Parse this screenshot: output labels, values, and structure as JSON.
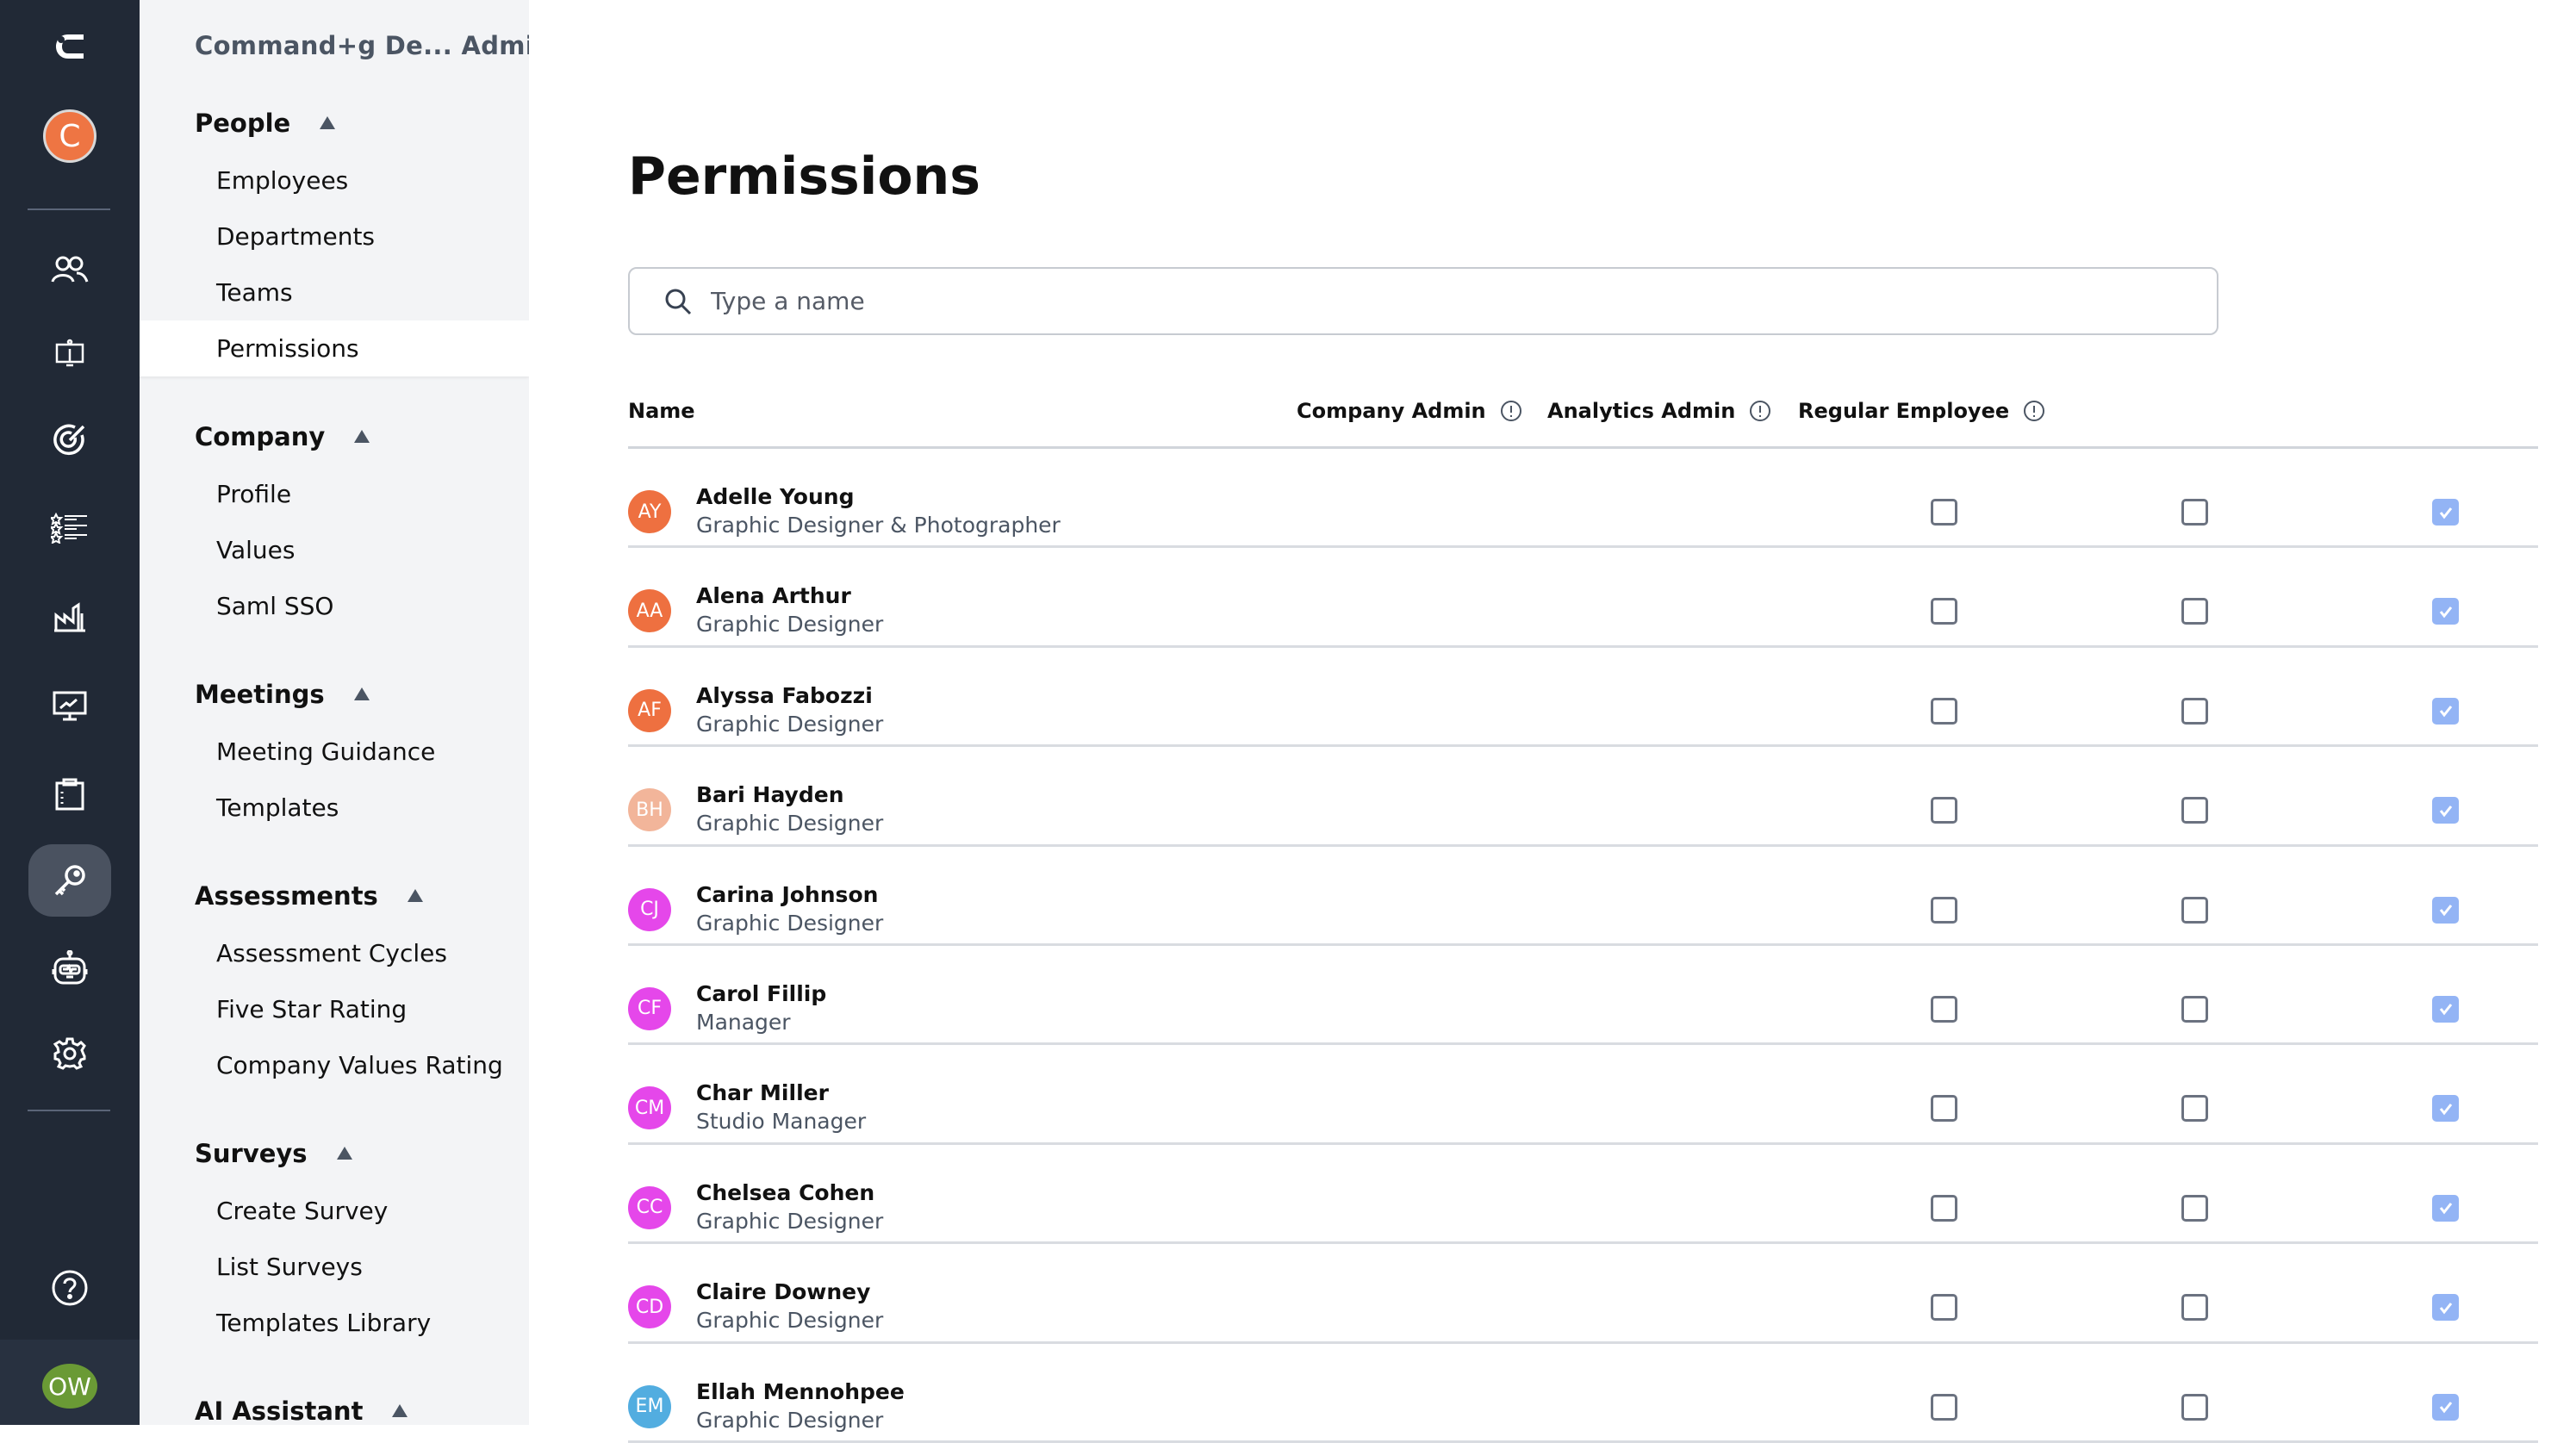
{
  "rail": {
    "icons": [
      "logo-icon",
      "company-avatar-icon",
      "people-icon",
      "presentation-icon",
      "target-icon",
      "star-list-icon",
      "factory-icon",
      "monitor-chart-icon",
      "clipboard-icon",
      "key-icon",
      "robot-icon",
      "gear-icon",
      "help-icon"
    ],
    "company_initial": "C",
    "user_initials": "OW",
    "active": "key-icon",
    "colors": {
      "bg": "#212936",
      "company_avatar": "#ee7543",
      "user_avatar": "#6a9a35"
    }
  },
  "nav": {
    "title": "Command+g De... Admin",
    "sections": [
      {
        "label": "People",
        "items": [
          "Employees",
          "Departments",
          "Teams",
          "Permissions"
        ]
      },
      {
        "label": "Company",
        "items": [
          "Profile",
          "Values",
          "Saml SSO"
        ]
      },
      {
        "label": "Meetings",
        "items": [
          "Meeting Guidance",
          "Templates"
        ]
      },
      {
        "label": "Assessments",
        "items": [
          "Assessment Cycles",
          "Five Star Rating",
          "Company Values Rating"
        ]
      },
      {
        "label": "Surveys",
        "items": [
          "Create Survey",
          "List Surveys",
          "Templates Library"
        ]
      },
      {
        "label": "AI Assistant",
        "items": []
      }
    ],
    "active_item": "Permissions"
  },
  "main": {
    "title": "Permissions",
    "search": {
      "placeholder": "Type a name",
      "value": ""
    },
    "columns": {
      "name": "Name",
      "company_admin": "Company Admin",
      "analytics_admin": "Analytics Admin",
      "regular_employee": "Regular Employee"
    },
    "rows": [
      {
        "initials": "AY",
        "color": "#ee7040",
        "name": "Adelle Young",
        "role": "Graphic Designer & Photographer",
        "company_admin": false,
        "analytics_admin": false,
        "regular_employee": true
      },
      {
        "initials": "AA",
        "color": "#ee7040",
        "name": "Alena Arthur",
        "role": "Graphic Designer",
        "company_admin": false,
        "analytics_admin": false,
        "regular_employee": true
      },
      {
        "initials": "AF",
        "color": "#ee7040",
        "name": "Alyssa Fabozzi",
        "role": "Graphic Designer",
        "company_admin": false,
        "analytics_admin": false,
        "regular_employee": true
      },
      {
        "initials": "BH",
        "color": "#f2b59a",
        "name": "Bari Hayden",
        "role": "Graphic Designer",
        "company_admin": false,
        "analytics_admin": false,
        "regular_employee": true
      },
      {
        "initials": "CJ",
        "color": "#e547ea",
        "name": "Carina Johnson",
        "role": "Graphic Designer",
        "company_admin": false,
        "analytics_admin": false,
        "regular_employee": true
      },
      {
        "initials": "CF",
        "color": "#e547ea",
        "name": "Carol Fillip",
        "role": "Manager",
        "company_admin": false,
        "analytics_admin": false,
        "regular_employee": true
      },
      {
        "initials": "CM",
        "color": "#e547ea",
        "name": "Char Miller",
        "role": "Studio Manager",
        "company_admin": false,
        "analytics_admin": false,
        "regular_employee": true
      },
      {
        "initials": "CC",
        "color": "#e547ea",
        "name": "Chelsea Cohen",
        "role": "Graphic Designer",
        "company_admin": false,
        "analytics_admin": false,
        "regular_employee": true
      },
      {
        "initials": "CD",
        "color": "#e547ea",
        "name": "Claire Downey",
        "role": "Graphic Designer",
        "company_admin": false,
        "analytics_admin": false,
        "regular_employee": true
      },
      {
        "initials": "EM",
        "color": "#52ade0",
        "name": "Ellah Mennohpee",
        "role": "Graphic Designer",
        "company_admin": false,
        "analytics_admin": false,
        "regular_employee": true
      }
    ],
    "checked_color": "#93b4f5"
  }
}
